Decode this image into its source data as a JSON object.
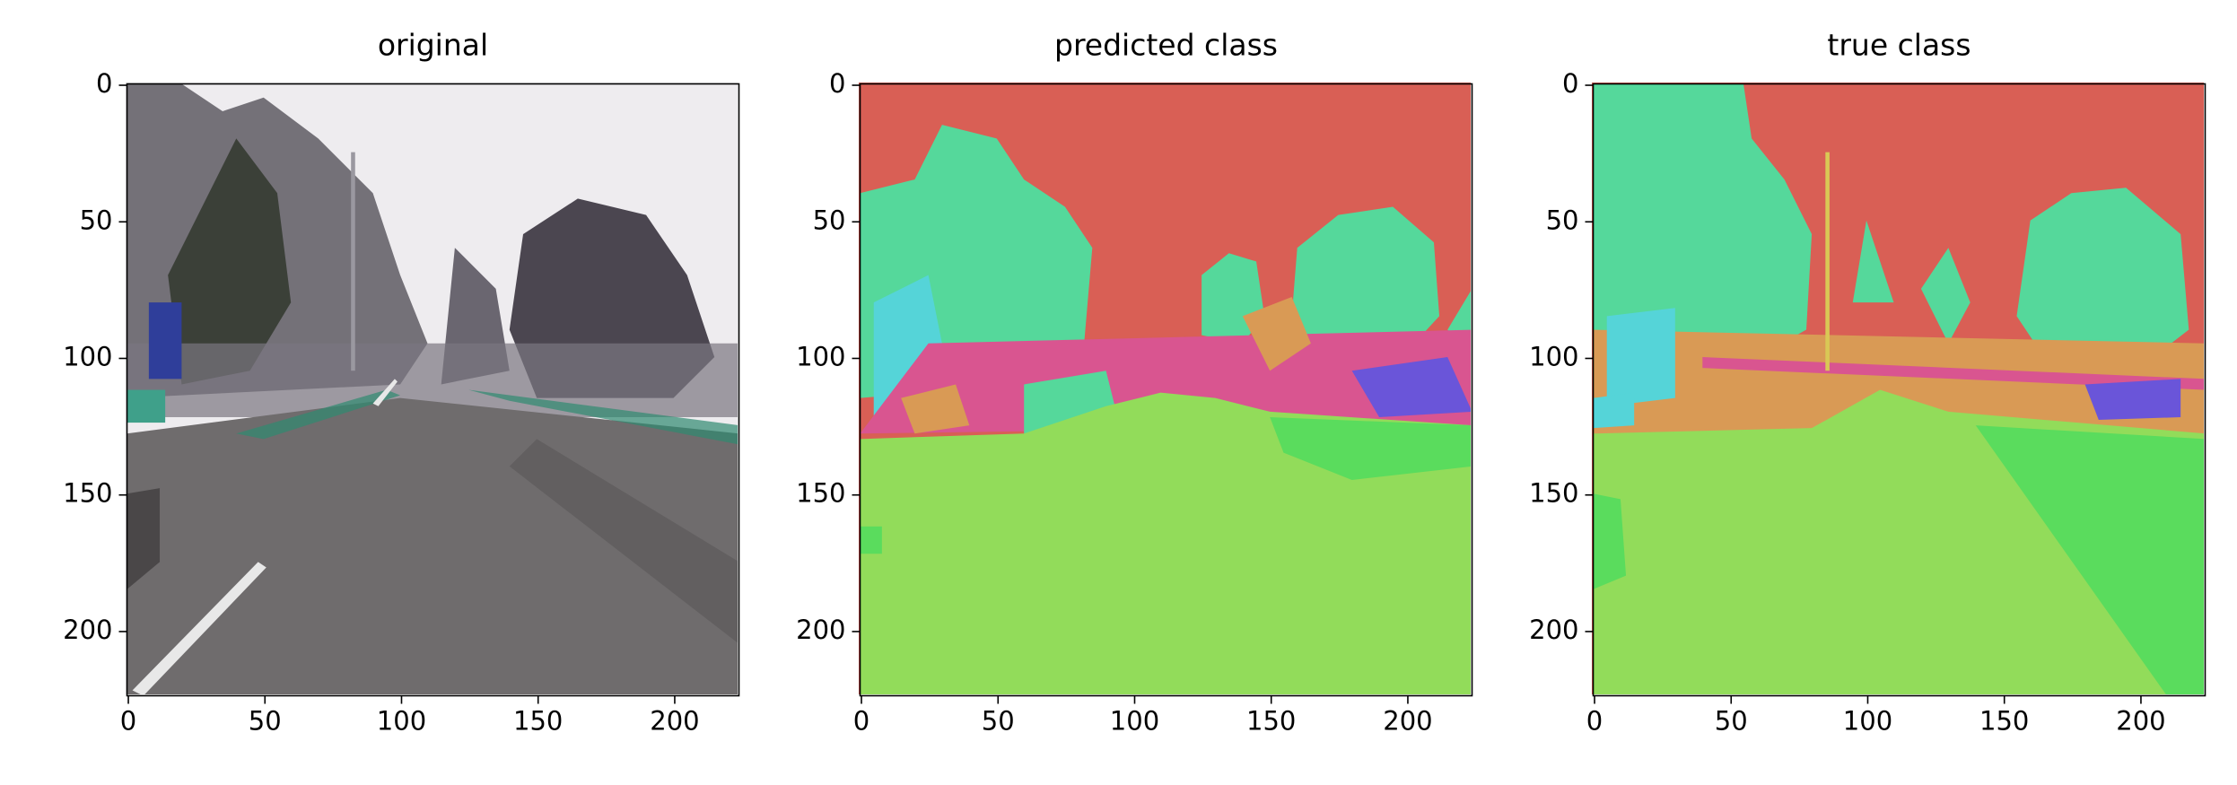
{
  "chart_data": [
    {
      "type": "image",
      "title": "original",
      "xlim": [
        -0.5,
        223.5
      ],
      "ylim": [
        223.5,
        -0.5
      ],
      "xticks": [
        0,
        50,
        100,
        150,
        200
      ],
      "yticks": [
        0,
        50,
        100,
        150,
        200
      ]
    },
    {
      "type": "image",
      "title": "predicted class",
      "xlim": [
        -0.5,
        223.5
      ],
      "ylim": [
        223.5,
        -0.5
      ],
      "xticks": [
        0,
        50,
        100,
        150,
        200
      ],
      "yticks": [
        0,
        50,
        100,
        150,
        200
      ]
    },
    {
      "type": "image",
      "title": "true class",
      "xlim": [
        -0.5,
        223.5
      ],
      "ylim": [
        223.5,
        -0.5
      ],
      "xticks": [
        0,
        50,
        100,
        150,
        200
      ],
      "yticks": [
        0,
        50,
        100,
        150,
        200
      ]
    }
  ]
}
